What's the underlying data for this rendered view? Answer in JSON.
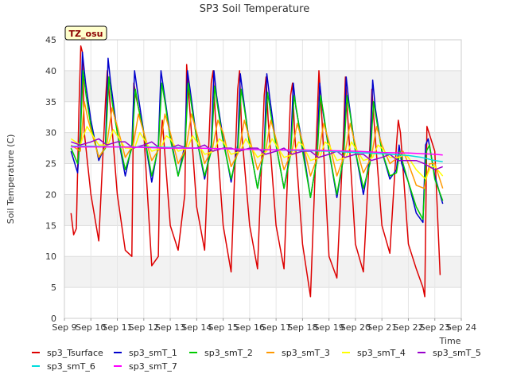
{
  "chart_data": {
    "type": "line",
    "title": "SP3 Soil Temperature",
    "xlabel": "Time",
    "ylabel": "Soil Temperature (C)",
    "badge": "TZ_osu",
    "ylim": [
      0,
      45
    ],
    "yticks": [
      0,
      5,
      10,
      15,
      20,
      25,
      30,
      35,
      40,
      45
    ],
    "xlim": [
      9,
      24
    ],
    "xticks": [
      {
        "value": 9,
        "label": "Sep 9"
      },
      {
        "value": 10,
        "label": "Sep 10"
      },
      {
        "value": 11,
        "label": "Sep 11"
      },
      {
        "value": 12,
        "label": "Sep 12"
      },
      {
        "value": 13,
        "label": "Sep 13"
      },
      {
        "value": 14,
        "label": "Sep 14"
      },
      {
        "value": 15,
        "label": "Sep 15"
      },
      {
        "value": 16,
        "label": "Sep 16"
      },
      {
        "value": 17,
        "label": "Sep 17"
      },
      {
        "value": 18,
        "label": "Sep 18"
      },
      {
        "value": 19,
        "label": "Sep 19"
      },
      {
        "value": 20,
        "label": "Sep 20"
      },
      {
        "value": 21,
        "label": "Sep 21"
      },
      {
        "value": 22,
        "label": "Sep 22"
      },
      {
        "value": 23,
        "label": "Sep 23"
      },
      {
        "value": 24,
        "label": "Sep 24"
      }
    ],
    "series": [
      {
        "name": "sp3_Tsurface",
        "color": "#dd0000",
        "x": [
          9.25,
          9.35,
          9.45,
          9.55,
          9.62,
          9.68,
          9.75,
          10.0,
          10.3,
          10.55,
          10.62,
          10.7,
          11.0,
          11.3,
          11.55,
          11.62,
          11.7,
          12.0,
          12.3,
          12.55,
          12.62,
          12.7,
          13.0,
          13.3,
          13.55,
          13.62,
          13.7,
          14.0,
          14.3,
          14.55,
          14.62,
          14.7,
          15.0,
          15.3,
          15.55,
          15.62,
          15.7,
          16.0,
          16.3,
          16.55,
          16.62,
          16.7,
          17.0,
          17.3,
          17.55,
          17.62,
          17.7,
          18.0,
          18.3,
          18.55,
          18.62,
          18.7,
          19.0,
          19.3,
          19.55,
          19.62,
          19.7,
          20.0,
          20.3,
          20.55,
          20.62,
          20.7,
          21.0,
          21.3,
          21.55,
          21.62,
          21.7,
          22.0,
          22.3,
          22.55,
          22.62,
          22.7,
          23.0,
          23.2
        ],
        "values": [
          17,
          13.5,
          14.5,
          34,
          44,
          43,
          30,
          20,
          12.5,
          35,
          40,
          36,
          20,
          11,
          10,
          38,
          36,
          30,
          8.5,
          10,
          28,
          32,
          15,
          11,
          20,
          41,
          36,
          18,
          11,
          38,
          40,
          33,
          15,
          7.5,
          37,
          40,
          30,
          15,
          8,
          36,
          39,
          32,
          15,
          8,
          36,
          38,
          30,
          12,
          3.5,
          32,
          40,
          35,
          10,
          6.5,
          30,
          39,
          33,
          12,
          7.5,
          28,
          37,
          32,
          15,
          10.5,
          28,
          32,
          30,
          12,
          8,
          5,
          3.5,
          31,
          27,
          7
        ]
      },
      {
        "name": "sp3_smT_1",
        "color": "#0000cc",
        "x": [
          9.25,
          9.5,
          9.6,
          9.68,
          9.8,
          10.0,
          10.3,
          10.55,
          10.65,
          10.75,
          11.0,
          11.3,
          11.55,
          11.65,
          11.75,
          12.0,
          12.3,
          12.55,
          12.65,
          12.75,
          13.0,
          13.3,
          13.55,
          13.65,
          13.75,
          14.0,
          14.3,
          14.55,
          14.65,
          14.75,
          15.0,
          15.3,
          15.55,
          15.65,
          15.75,
          16.0,
          16.3,
          16.55,
          16.65,
          16.75,
          17.0,
          17.3,
          17.55,
          17.65,
          17.75,
          18.0,
          18.3,
          18.55,
          18.65,
          18.75,
          19.0,
          19.3,
          19.55,
          19.65,
          19.75,
          20.0,
          20.3,
          20.55,
          20.65,
          20.75,
          21.0,
          21.3,
          21.55,
          21.65,
          21.75,
          22.0,
          22.3,
          22.55,
          22.65,
          22.75,
          23.0,
          23.3
        ],
        "values": [
          27,
          23.5,
          30,
          43,
          38,
          32,
          25.5,
          28,
          42,
          38,
          30,
          23,
          28,
          40,
          37,
          30,
          22,
          28,
          40,
          37,
          29.5,
          23,
          28,
          40,
          37,
          29,
          22.5,
          28,
          40,
          36,
          29,
          22,
          28,
          39.5,
          36,
          28,
          21,
          27.5,
          39.5,
          36,
          28,
          21,
          27,
          38,
          34,
          28,
          19.5,
          26,
          38,
          34,
          27,
          19.5,
          26,
          39,
          35,
          27,
          20,
          26,
          38.5,
          34,
          27,
          22.5,
          24,
          28,
          25,
          22,
          17,
          15.5,
          28,
          29,
          23,
          18.5
        ]
      },
      {
        "name": "sp3_smT_2",
        "color": "#00cc00",
        "x": [
          9.25,
          9.5,
          9.6,
          9.7,
          9.82,
          10.0,
          10.3,
          10.55,
          10.68,
          10.8,
          11.0,
          11.3,
          11.55,
          11.68,
          11.8,
          12.0,
          12.3,
          12.55,
          12.68,
          12.8,
          13.0,
          13.3,
          13.55,
          13.68,
          13.8,
          14.0,
          14.3,
          14.55,
          14.68,
          14.8,
          15.0,
          15.3,
          15.55,
          15.68,
          15.8,
          16.0,
          16.3,
          16.55,
          16.68,
          16.8,
          17.0,
          17.3,
          17.55,
          17.68,
          17.8,
          18.0,
          18.3,
          18.55,
          18.68,
          18.8,
          19.0,
          19.3,
          19.55,
          19.68,
          19.8,
          20.0,
          20.3,
          20.55,
          20.68,
          20.8,
          21.0,
          21.3,
          21.55,
          21.68,
          21.8,
          22.0,
          22.3,
          22.55,
          22.68,
          22.8,
          23.0,
          23.3
        ],
        "values": [
          27.5,
          25,
          29,
          40,
          36,
          31,
          26,
          27.5,
          39,
          35,
          30,
          24,
          27.5,
          37,
          34,
          30,
          23,
          27.5,
          38,
          35,
          29,
          23,
          27,
          38,
          34.5,
          29,
          23,
          27,
          37.5,
          34,
          28.5,
          22.5,
          27,
          37,
          34,
          28,
          21,
          27,
          36.5,
          33,
          28,
          21,
          26.5,
          36,
          33,
          27,
          19.5,
          26,
          36,
          33,
          27,
          20,
          26,
          36,
          33,
          27,
          21,
          25,
          35,
          32,
          27,
          23,
          23.5,
          27,
          25,
          22,
          18,
          16,
          27,
          28,
          22.5,
          19
        ]
      },
      {
        "name": "sp3_smT_3",
        "color": "#ff9900",
        "x": [
          9.25,
          9.6,
          9.75,
          9.9,
          10.3,
          10.6,
          10.8,
          11.0,
          11.3,
          11.6,
          11.8,
          12.0,
          12.3,
          12.6,
          12.8,
          13.0,
          13.3,
          13.6,
          13.8,
          14.0,
          14.3,
          14.6,
          14.8,
          15.0,
          15.3,
          15.6,
          15.8,
          16.0,
          16.3,
          16.6,
          16.8,
          17.0,
          17.3,
          17.6,
          17.8,
          18.0,
          18.3,
          18.6,
          18.8,
          19.0,
          19.3,
          19.6,
          19.8,
          20.0,
          20.3,
          20.6,
          20.8,
          21.0,
          21.3,
          21.6,
          21.8,
          22.0,
          22.3,
          22.6,
          22.8,
          23.0,
          23.3
        ],
        "values": [
          28,
          27,
          35,
          32,
          26,
          28,
          34,
          31,
          26,
          28,
          33,
          30,
          25.5,
          27.5,
          33,
          30,
          25,
          27.5,
          33,
          30,
          25,
          27.5,
          32,
          30,
          24.5,
          27,
          32,
          29,
          24,
          27,
          32,
          29,
          24,
          27,
          31.5,
          28.5,
          23,
          26.5,
          31.5,
          28.5,
          23,
          26.5,
          31.5,
          28,
          23.5,
          26,
          31,
          28,
          25,
          26,
          27,
          25,
          21.5,
          21,
          25,
          25,
          21
        ]
      },
      {
        "name": "sp3_smT_4",
        "color": "#ffff00",
        "x": [
          9.25,
          9.6,
          9.85,
          10.0,
          10.3,
          10.65,
          10.85,
          11.0,
          11.3,
          11.65,
          11.85,
          12.0,
          12.3,
          12.65,
          12.85,
          13.0,
          13.3,
          13.65,
          13.85,
          14.0,
          14.3,
          14.65,
          14.85,
          15.0,
          15.3,
          15.65,
          15.85,
          16.0,
          16.3,
          16.65,
          16.85,
          17.0,
          17.3,
          17.65,
          17.85,
          18.0,
          18.3,
          18.65,
          18.85,
          19.0,
          19.3,
          19.65,
          19.85,
          20.0,
          20.3,
          20.65,
          20.85,
          21.0,
          21.3,
          21.65,
          21.85,
          22.0,
          22.3,
          22.65,
          22.85,
          23.0,
          23.3
        ],
        "values": [
          29,
          28,
          31,
          30,
          28,
          28,
          30.5,
          29.5,
          27.5,
          27.5,
          30,
          29,
          27,
          27.5,
          29.5,
          29,
          27,
          27.5,
          29.5,
          28.5,
          26.5,
          27,
          29,
          28.5,
          26.5,
          27,
          29,
          28,
          26,
          27,
          29,
          28,
          26,
          26.5,
          28.5,
          28,
          25.5,
          26,
          28.5,
          28,
          25.5,
          26,
          28.5,
          27.5,
          25.5,
          26,
          28,
          27.5,
          26,
          26,
          26.5,
          26,
          24,
          22.5,
          24.5,
          24.5,
          23
        ]
      },
      {
        "name": "sp3_smT_5",
        "color": "#9900cc",
        "x": [
          9.25,
          9.6,
          10.0,
          10.3,
          10.6,
          11.0,
          11.3,
          11.6,
          12.0,
          12.3,
          12.6,
          13.0,
          13.3,
          13.6,
          14.0,
          14.3,
          14.6,
          15.0,
          15.3,
          15.6,
          16.0,
          16.3,
          16.6,
          17.0,
          17.3,
          17.6,
          18.0,
          18.3,
          18.6,
          19.0,
          19.3,
          19.6,
          20.0,
          20.3,
          20.6,
          21.0,
          21.3,
          21.6,
          22.0,
          22.3,
          22.6,
          23.0,
          23.3
        ],
        "values": [
          28.5,
          28,
          28.5,
          29,
          28,
          28.5,
          28.5,
          27.5,
          28,
          28.5,
          27.5,
          27.5,
          28,
          27.5,
          27.5,
          28,
          27,
          27.5,
          27.5,
          27,
          27.5,
          27.5,
          26.5,
          27,
          27.5,
          26.5,
          27,
          27,
          26,
          26.5,
          27,
          26,
          26.5,
          26.5,
          25.5,
          26,
          26.5,
          25.5,
          25.5,
          25.5,
          25,
          24,
          24.5
        ]
      },
      {
        "name": "sp3_smT_6",
        "color": "#00dddd",
        "x": [
          9.25,
          10.0,
          11.0,
          12.0,
          13.0,
          14.0,
          15.0,
          16.0,
          17.0,
          18.0,
          19.0,
          20.0,
          21.0,
          22.0,
          22.5,
          23.0,
          23.3
        ],
        "values": [
          27.8,
          27.8,
          27.7,
          27.7,
          27.6,
          27.5,
          27.4,
          27.3,
          27.2,
          27.1,
          27.0,
          26.8,
          26.6,
          26.3,
          26.0,
          25.5,
          25.3
        ]
      },
      {
        "name": "sp3_smT_7",
        "color": "#ff00ff",
        "x": [
          9.25,
          10.0,
          11.0,
          12.0,
          13.0,
          14.0,
          15.0,
          16.0,
          17.0,
          18.0,
          19.0,
          20.0,
          21.0,
          22.0,
          23.0,
          23.3
        ],
        "values": [
          27.7,
          27.7,
          27.7,
          27.6,
          27.5,
          27.5,
          27.4,
          27.3,
          27.2,
          27.2,
          27.1,
          27.0,
          26.8,
          26.7,
          26.5,
          26.4
        ]
      }
    ]
  }
}
